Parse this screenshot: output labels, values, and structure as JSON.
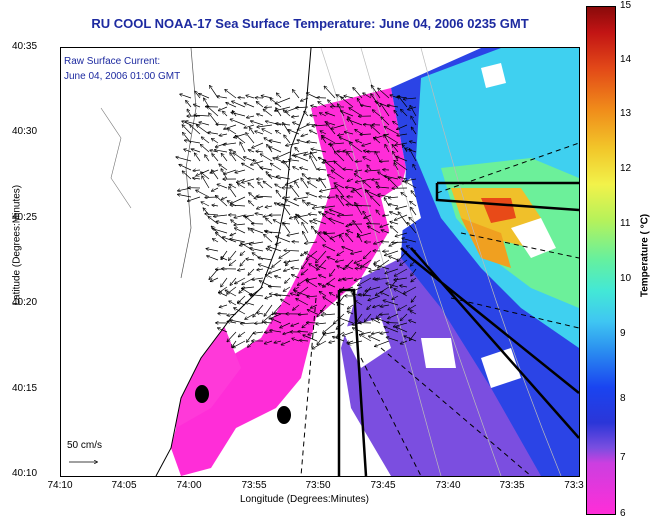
{
  "title": "RU COOL  NOAA-17  Sea Surface Temperature:  June 04, 2006 0235 GMT",
  "overlay": {
    "line1": "Raw Surface Current:",
    "line2": "June 04, 2006 01:00 GMT"
  },
  "scale_label": "50 cm/s",
  "axes": {
    "xlabel": "Longitude (Degrees:Minutes)",
    "ylabel": "Latitude (Degrees:Minutes)",
    "yticks": [
      "40:35",
      "40:30",
      "40:25",
      "40:20",
      "40:15",
      "40:10"
    ],
    "xticks": [
      "74:10",
      "74:05",
      "74:00",
      "73:55",
      "73:50",
      "73:45",
      "73:40",
      "73:35",
      "73:3"
    ]
  },
  "colorbar": {
    "label": "Temperature ( °C)",
    "ticks": [
      "15",
      "14",
      "13",
      "12",
      "11",
      "10",
      "9",
      "8",
      "7",
      "6"
    ]
  },
  "colors": {
    "title": "#1d2aa0",
    "land": "#ffffff",
    "coast": "#000000"
  }
}
